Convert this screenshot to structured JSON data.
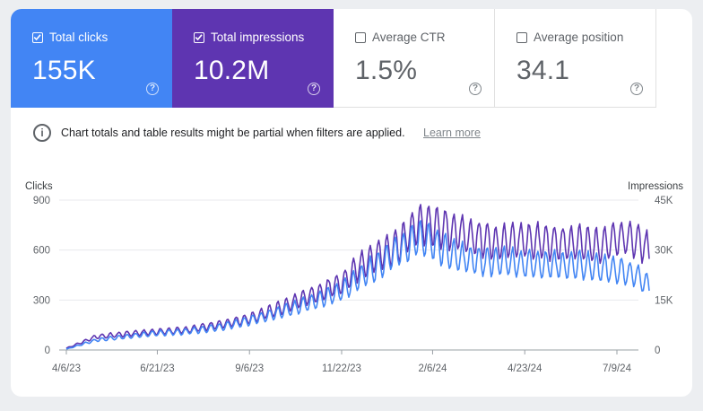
{
  "metrics": [
    {
      "label": "Total clicks",
      "value": "155K",
      "checked": true,
      "color": "#4285f4"
    },
    {
      "label": "Total impressions",
      "value": "10.2M",
      "checked": true,
      "color": "#5e35b1"
    },
    {
      "label": "Average CTR",
      "value": "1.5%",
      "checked": false
    },
    {
      "label": "Average position",
      "value": "34.1",
      "checked": false
    }
  ],
  "help_glyph": "?",
  "notice": {
    "text": "Chart totals and table results might be partial when filters are applied.",
    "link": "Learn more",
    "icon": "info-icon",
    "icon_glyph": "i"
  },
  "chart_data": {
    "type": "line",
    "left_axis_label": "Clicks",
    "right_axis_label": "Impressions",
    "left_ticks": [
      "900",
      "600",
      "300",
      "0"
    ],
    "right_ticks": [
      "45K",
      "30K",
      "15K",
      "0"
    ],
    "left_ylim": [
      0,
      900
    ],
    "right_ylim": [
      0,
      45000
    ],
    "x_ticks": [
      "4/6/23",
      "6/21/23",
      "9/6/23",
      "11/22/23",
      "2/6/24",
      "4/23/24",
      "7/9/24"
    ],
    "grid": true,
    "series": [
      {
        "name": "Clicks",
        "axis": "left",
        "color": "#4285f4",
        "x": [
          "4/6/23",
          "5/1/23",
          "6/1/23",
          "6/21/23",
          "7/15/23",
          "8/10/23",
          "9/6/23",
          "10/1/23",
          "10/25/23",
          "11/22/23",
          "12/10/23",
          "12/25/23",
          "1/10/24",
          "1/25/24",
          "2/6/24",
          "2/20/24",
          "3/10/24",
          "4/1/24",
          "4/23/24",
          "5/20/24",
          "6/10/24",
          "6/25/24",
          "7/9/24",
          "7/25/24",
          "8/5/24"
        ],
        "values": [
          5,
          60,
          85,
          100,
          110,
          135,
          175,
          225,
          280,
          350,
          450,
          520,
          600,
          670,
          640,
          580,
          540,
          530,
          520,
          510,
          510,
          490,
          480,
          450,
          380
        ]
      },
      {
        "name": "Impressions",
        "axis": "right",
        "color": "#5e35b1",
        "x": [
          "4/6/23",
          "5/1/23",
          "6/1/23",
          "6/21/23",
          "7/15/23",
          "8/10/23",
          "9/6/23",
          "10/1/23",
          "10/25/23",
          "11/22/23",
          "12/10/23",
          "12/25/23",
          "1/10/24",
          "1/25/24",
          "2/6/24",
          "2/20/24",
          "3/10/24",
          "4/1/24",
          "4/23/24",
          "5/20/24",
          "6/10/24",
          "6/25/24",
          "7/9/24",
          "7/25/24",
          "8/5/24"
        ],
        "values": [
          500,
          4000,
          5000,
          5500,
          6000,
          7500,
          9500,
          12500,
          16000,
          20000,
          26000,
          29000,
          32000,
          38000,
          37000,
          36000,
          34000,
          32000,
          33000,
          32000,
          32000,
          31000,
          34000,
          33000,
          30000
        ]
      }
    ]
  }
}
